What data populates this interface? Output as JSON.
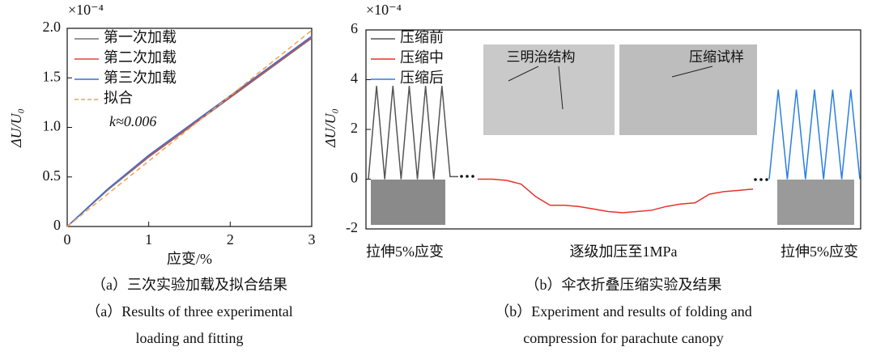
{
  "chart_data": [
    {
      "type": "line",
      "multiplier": "×10⁻⁴",
      "xlabel": "应变/%",
      "ylabel": "ΔU/U₀",
      "x": [
        0,
        0.5,
        1,
        1.5,
        2,
        2.5,
        3
      ],
      "series": [
        {
          "name": "第一次加载",
          "color": "#777777",
          "linestyle": "solid",
          "values": [
            0,
            0.37,
            0.7,
            1.0,
            1.3,
            1.6,
            1.9
          ]
        },
        {
          "name": "第二次加载",
          "color": "#e8413c",
          "linestyle": "solid",
          "values": [
            0,
            0.38,
            0.71,
            1.01,
            1.31,
            1.61,
            1.91
          ]
        },
        {
          "name": "第三次加载",
          "color": "#3a6fd8",
          "linestyle": "solid",
          "values": [
            0,
            0.38,
            0.72,
            1.02,
            1.32,
            1.62,
            1.92
          ]
        },
        {
          "name": "拟合",
          "color": "#f5a04a",
          "linestyle": "dashed",
          "values": [
            0,
            0.33,
            0.66,
            0.99,
            1.32,
            1.65,
            1.98
          ]
        }
      ],
      "annotation": "k≈0.006",
      "xlim": [
        0,
        3
      ],
      "xticks": [
        0,
        1,
        2,
        3
      ],
      "ylim": [
        0,
        2
      ],
      "yticks": [
        0,
        0.5,
        {
          "value": 1,
          "label": "1.0"
        },
        1.5,
        {
          "value": 2,
          "label": "2.0"
        }
      ]
    },
    {
      "type": "segmented-line",
      "multiplier": "×10⁻⁴",
      "ylabel": "ΔU/U₀",
      "segment_labels": [
        "拉伸5%应变",
        "逐级加压至1MPa",
        "拉伸5%应变"
      ],
      "photo_annotations": [
        "三明治结构",
        "压缩试样"
      ],
      "series": [
        {
          "name": "压缩前",
          "color": "#555555",
          "values": [
            0,
            3.75,
            0,
            3.75,
            0,
            3.75,
            0,
            3.75,
            0,
            3.75,
            0.1,
            0.1
          ]
        },
        {
          "name": "压缩中",
          "color": "#e8312c",
          "values": [
            0,
            0,
            -0.05,
            -0.2,
            -0.7,
            -1.05,
            -1.05,
            -1.1,
            -1.2,
            -1.3,
            -1.35,
            -1.3,
            -1.25,
            -1.1,
            -1.0,
            -0.95,
            -0.6,
            -0.5,
            -0.45,
            -0.4
          ]
        },
        {
          "name": "压缩后",
          "color": "#2a7fe0",
          "values": [
            0,
            3.6,
            0,
            3.6,
            0,
            3.6,
            0,
            3.6,
            0,
            3.6,
            0
          ]
        }
      ],
      "ylim": [
        -2,
        6
      ],
      "yticks": [
        -2,
        0,
        2,
        4,
        6
      ]
    }
  ],
  "figure_captions": [
    {
      "zh": "（a）三次实验加载及拟合结果",
      "en": [
        "（a）Results of three experimental",
        "loading and fitting"
      ]
    },
    {
      "zh": "（b）伞衣折叠压缩实验及结果",
      "en": [
        "（b）Experiment and results of folding and",
        "compression for parachute canopy"
      ]
    }
  ]
}
